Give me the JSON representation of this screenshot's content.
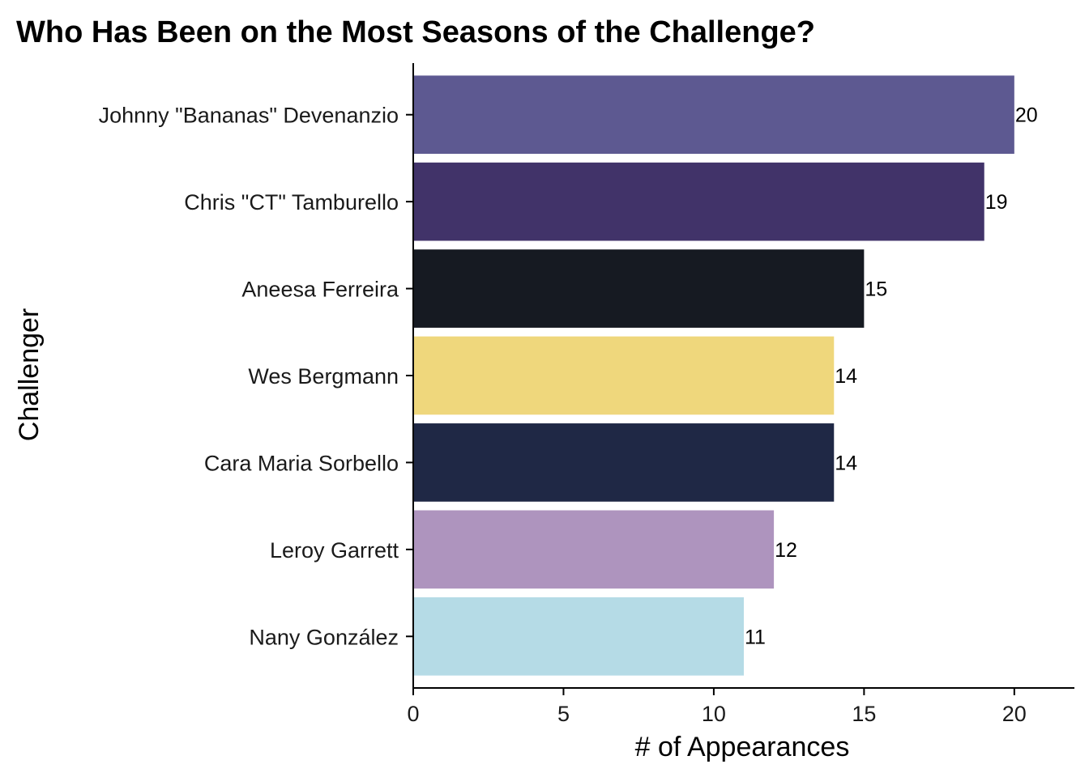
{
  "chart_data": {
    "type": "bar",
    "orientation": "horizontal",
    "title": "Who Has Been on the Most Seasons of the Challenge?",
    "xlabel": "# of Appearances",
    "ylabel": "Challenger",
    "xlim": [
      0,
      22
    ],
    "xticks": [
      0,
      5,
      10,
      15,
      20
    ],
    "grid": false,
    "legend": "none",
    "categories": [
      "Johnny \"Bananas\" Devenanzio",
      "Chris \"CT\" Tamburello",
      "Aneesa Ferreira",
      "Wes Bergmann",
      "Cara Maria Sorbello",
      "Leroy Garrett",
      "Nany González"
    ],
    "values": [
      20,
      19,
      15,
      14,
      14,
      12,
      11
    ],
    "colors": [
      "#5d5991",
      "#413369",
      "#161a22",
      "#efd77c",
      "#1f2845",
      "#ae94be",
      "#b5dbe6"
    ]
  }
}
